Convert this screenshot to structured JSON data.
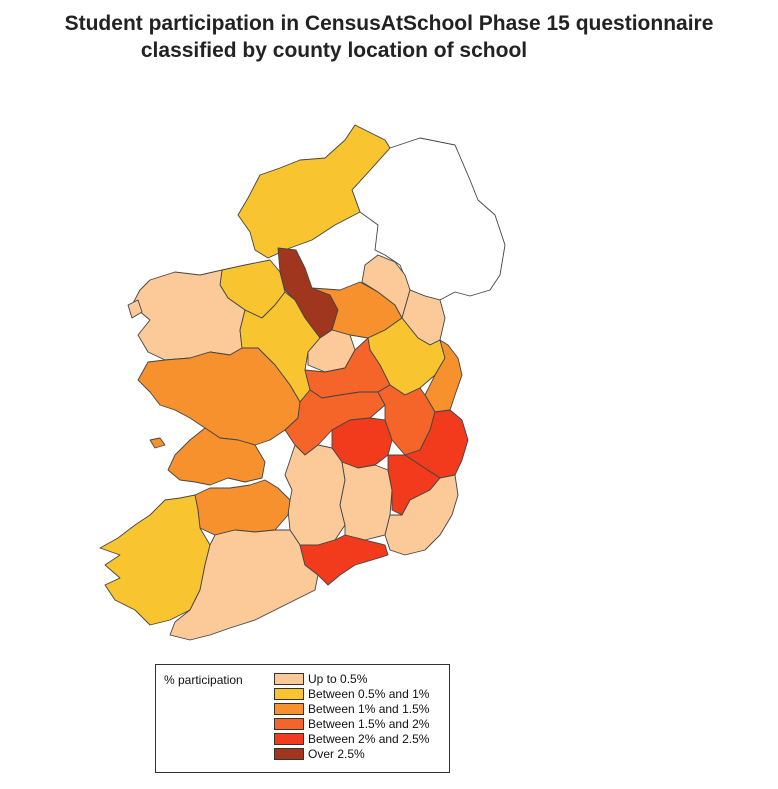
{
  "title": {
    "line1": "Student participation in CensusAtSchool Phase 15 questionnaire",
    "line2": "classified by county location of school"
  },
  "legend": {
    "title": "% participation",
    "items": [
      {
        "label": "Up to 0.5%",
        "color": "#fcc998"
      },
      {
        "label": "Between 0.5% and 1%",
        "color": "#f8c430"
      },
      {
        "label": "Between 1% and 1.5%",
        "color": "#f7912e"
      },
      {
        "label": "Between 1.5% and 2%",
        "color": "#f5652a"
      },
      {
        "label": "Between 2% and 2.5%",
        "color": "#f23b1d"
      },
      {
        "label": "Over 2.5%",
        "color": "#a0361e"
      }
    ]
  },
  "counties": [
    {
      "name": "donegal",
      "category": 1
    },
    {
      "name": "sligo-leitrim-north",
      "category": 1
    },
    {
      "name": "leitrim",
      "category": 5
    },
    {
      "name": "cavan",
      "category": 2
    },
    {
      "name": "monaghan",
      "category": 0
    },
    {
      "name": "louth",
      "category": 0
    },
    {
      "name": "mayo",
      "category": 0
    },
    {
      "name": "roscommon",
      "category": 1
    },
    {
      "name": "longford",
      "category": 0
    },
    {
      "name": "meath",
      "category": 1
    },
    {
      "name": "dublin",
      "category": 2
    },
    {
      "name": "westmeath",
      "category": 3
    },
    {
      "name": "galway",
      "category": 2
    },
    {
      "name": "offaly",
      "category": 3
    },
    {
      "name": "kildare",
      "category": 3
    },
    {
      "name": "laois",
      "category": 4
    },
    {
      "name": "wicklow",
      "category": 4
    },
    {
      "name": "clare",
      "category": 2
    },
    {
      "name": "tipperary",
      "category": 0
    },
    {
      "name": "kilkenny",
      "category": 0
    },
    {
      "name": "carlow",
      "category": 4
    },
    {
      "name": "wexford",
      "category": 0
    },
    {
      "name": "limerick",
      "category": 2
    },
    {
      "name": "kerry",
      "category": 1
    },
    {
      "name": "cork",
      "category": 0
    },
    {
      "name": "waterford",
      "category": 4
    },
    {
      "name": "northern-ireland",
      "category": -1
    }
  ]
}
